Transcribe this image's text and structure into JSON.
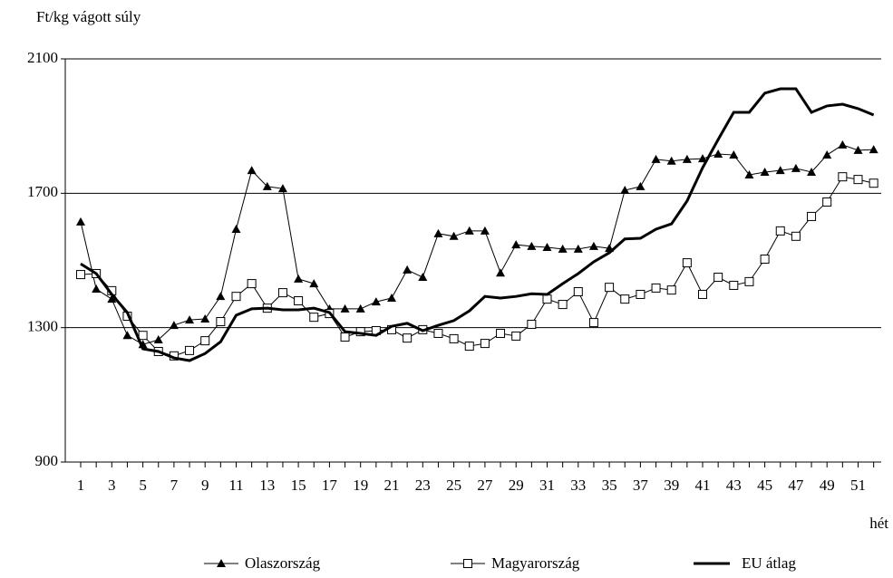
{
  "chart_data": {
    "type": "line",
    "y_label": "Ft/kg vágott súly",
    "x_label": "hét",
    "categories": [
      1,
      null,
      3,
      null,
      5,
      null,
      7,
      null,
      9,
      null,
      11,
      null,
      13,
      null,
      15,
      null,
      17,
      null,
      19,
      null,
      21,
      null,
      23,
      null,
      25,
      null,
      27,
      null,
      29,
      null,
      31,
      null,
      33,
      null,
      35,
      null,
      37,
      null,
      39,
      null,
      41,
      null,
      43,
      null,
      45,
      null,
      47,
      null,
      49,
      null,
      51,
      null
    ],
    "ylim": [
      900,
      2100
    ],
    "yticks": [
      900,
      1300,
      1700,
      2100
    ],
    "grid": true,
    "legend": "bottom",
    "series": [
      {
        "name": "Olaszország",
        "color": "#000000",
        "marker": "triangle",
        "values": [
          1615,
          1415,
          1385,
          1277,
          1250,
          1264,
          1307,
          1323,
          1326,
          1393,
          1593,
          1768,
          1720,
          1714,
          1445,
          1431,
          1356,
          1356,
          1356,
          1377,
          1388,
          1472,
          1450,
          1580,
          1572,
          1588,
          1588,
          1463,
          1547,
          1542,
          1539,
          1534,
          1534,
          1542,
          1536,
          1709,
          1720,
          1801,
          1796,
          1801,
          1803,
          1817,
          1814,
          1755,
          1763,
          1768,
          1774,
          1763,
          1814,
          1844,
          1828,
          1830
        ]
      },
      {
        "name": "Magyarország",
        "color": "#000000",
        "marker": "square",
        "values": [
          1458,
          1461,
          1410,
          1334,
          1277,
          1229,
          1216,
          1232,
          1261,
          1318,
          1393,
          1431,
          1358,
          1404,
          1380,
          1331,
          1342,
          1272,
          1288,
          1291,
          1294,
          1269,
          1294,
          1283,
          1267,
          1245,
          1253,
          1283,
          1275,
          1310,
          1385,
          1369,
          1407,
          1315,
          1420,
          1385,
          1399,
          1418,
          1412,
          1493,
          1399,
          1450,
          1426,
          1437,
          1504,
          1588,
          1572,
          1631,
          1674,
          1749,
          1741,
          1730
        ]
      },
      {
        "name": "EU átlag",
        "color": "#000000",
        "marker": "none",
        "values": [
          1490,
          1461,
          1399,
          1345,
          1237,
          1229,
          1210,
          1202,
          1223,
          1258,
          1337,
          1356,
          1358,
          1353,
          1353,
          1358,
          1345,
          1288,
          1283,
          1277,
          1304,
          1313,
          1291,
          1307,
          1321,
          1350,
          1393,
          1388,
          1393,
          1401,
          1399,
          1431,
          1461,
          1496,
          1523,
          1564,
          1566,
          1593,
          1609,
          1677,
          1776,
          1860,
          1941,
          1941,
          1998,
          2011,
          2011,
          1941,
          1960,
          1965,
          1952,
          1933
        ]
      }
    ]
  }
}
